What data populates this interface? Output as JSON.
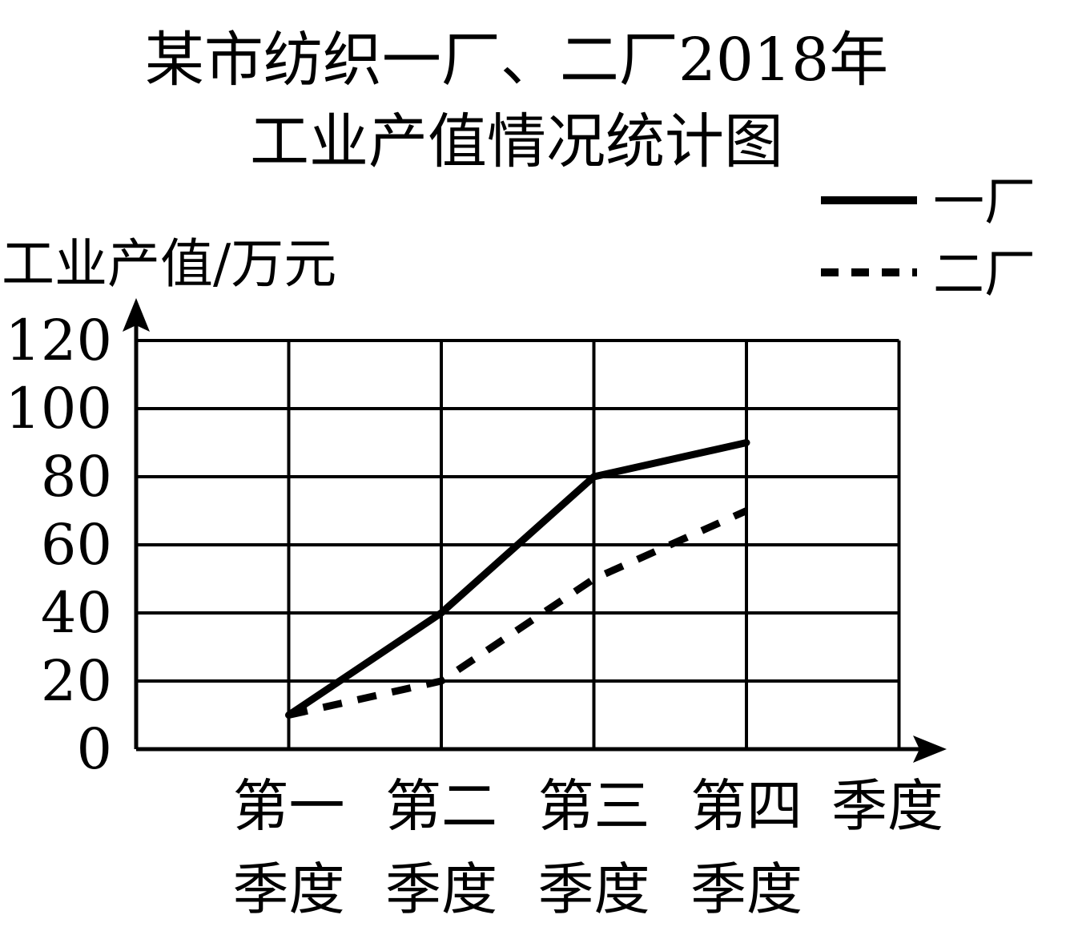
{
  "chart_data": {
    "type": "line",
    "title_line1": "某市纺织一厂、二厂2018年",
    "title_line2": "工业产值情况统计图",
    "ylabel": "工业产值/万元",
    "xlabel": "季度",
    "categories": [
      [
        "第一",
        "季度"
      ],
      [
        "第二",
        "季度"
      ],
      [
        "第三",
        "季度"
      ],
      [
        "第四",
        "季度"
      ]
    ],
    "y_ticks": [
      0,
      20,
      40,
      60,
      80,
      100,
      120
    ],
    "ylim": [
      0,
      120
    ],
    "grid": true,
    "legend_position": "top-right",
    "series": [
      {
        "name": "一厂",
        "values": [
          10,
          40,
          80,
          90
        ],
        "style": "solid",
        "color": "#000000"
      },
      {
        "name": "二厂",
        "values": [
          10,
          20,
          50,
          70
        ],
        "style": "dashed",
        "color": "#000000"
      }
    ]
  }
}
